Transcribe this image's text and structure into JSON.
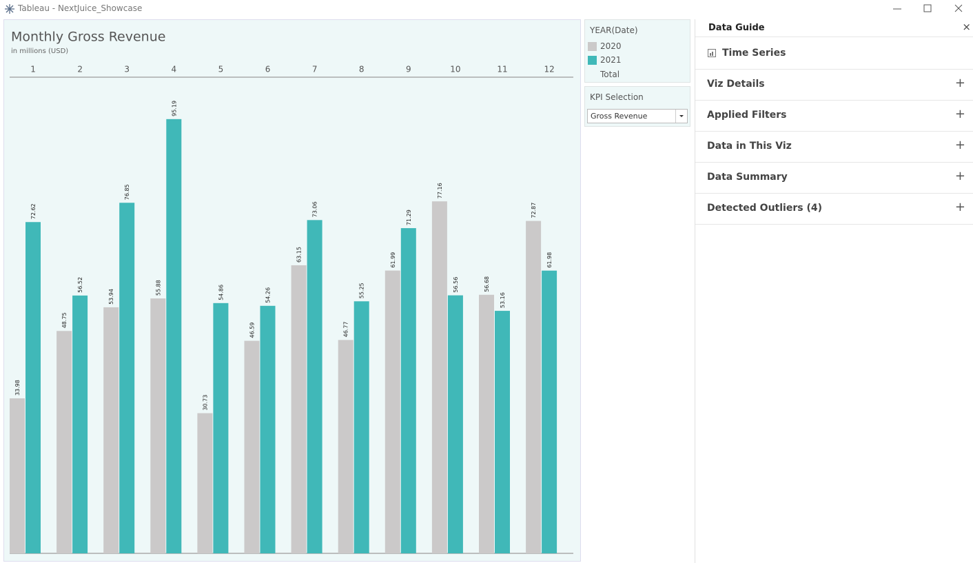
{
  "window": {
    "title": "Tableau - NextJuice_Showcase"
  },
  "chart_data": {
    "type": "bar",
    "title": "Monthly Gross Revenue",
    "subtitle": "in millions (USD)",
    "categories": [
      "1",
      "2",
      "3",
      "4",
      "5",
      "6",
      "7",
      "8",
      "9",
      "10",
      "11",
      "12"
    ],
    "series": [
      {
        "name": "2020",
        "color": "#cbc9c9",
        "values": [
          33.98,
          48.75,
          53.94,
          55.88,
          30.73,
          46.59,
          63.15,
          46.77,
          61.99,
          77.16,
          56.68,
          72.87
        ]
      },
      {
        "name": "2021",
        "color": "#40b8b8",
        "values": [
          72.62,
          56.52,
          76.85,
          95.19,
          54.86,
          54.26,
          73.06,
          55.25,
          71.29,
          56.56,
          53.16,
          61.98
        ]
      }
    ]
  },
  "legend": {
    "title": "YEAR(Date)",
    "total": "Total"
  },
  "kpi": {
    "label": "KPI Selection",
    "selected": "Gross Revenue"
  },
  "data_guide": {
    "title": "Data Guide",
    "close": "×",
    "first": "Time Series",
    "items": [
      "Viz Details",
      "Applied Filters",
      "Data in This Viz",
      "Data Summary",
      "Detected Outliers (4)"
    ],
    "expand": "+"
  }
}
